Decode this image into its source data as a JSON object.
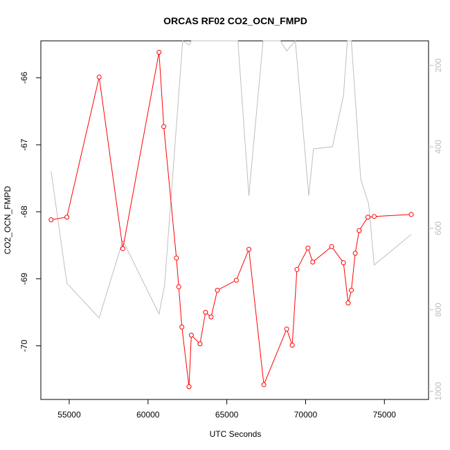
{
  "chart_data": {
    "type": "line",
    "title": "ORCAS RF02 CO2_OCN_FMPD",
    "xlabel": "UTC Seconds",
    "ylabel": "CO2_OCN_FMPD",
    "xlim": [
      53200,
      77800
    ],
    "ylim": [
      -70.8,
      -65.45
    ],
    "x_ticks": [
      55000,
      60000,
      65000,
      70000,
      75000
    ],
    "y_ticks": [
      -70,
      -69,
      -68,
      -67,
      -66
    ],
    "right_axis": {
      "ylim": [
        1020,
        140
      ],
      "ticks": [
        200,
        400,
        600,
        800,
        1000
      ],
      "color": "#bebebe"
    },
    "series": [
      {
        "color": "#ff0000",
        "marker": "open-circle",
        "axis": "left",
        "x": [
          53850,
          54850,
          56900,
          58400,
          60700,
          61000,
          61800,
          61950,
          62150,
          62600,
          62750,
          63300,
          63650,
          64000,
          64400,
          65600,
          66400,
          67350,
          68800,
          69150,
          69450,
          70150,
          70450,
          71650,
          72400,
          72700,
          72900,
          73150,
          73400,
          73950,
          74350,
          76700
        ],
        "y": [
          -68.12,
          -68.08,
          -65.99,
          -68.55,
          -65.62,
          -66.73,
          -68.69,
          -69.12,
          -69.72,
          -70.61,
          -69.84,
          -69.97,
          -69.5,
          -69.57,
          -69.17,
          -69.02,
          -68.56,
          -70.58,
          -69.75,
          -69.99,
          -68.86,
          -68.54,
          -68.75,
          -68.52,
          -68.76,
          -69.36,
          -69.17,
          -68.62,
          -68.28,
          -68.08,
          -68.07,
          -68.04
        ]
      },
      {
        "color": "#bebebe",
        "marker": "none",
        "axis": "right",
        "x": [
          53850,
          54850,
          56900,
          58400,
          60700,
          61050,
          62200,
          62600,
          62750,
          63350,
          64400,
          65700,
          66400,
          67300,
          68400,
          68800,
          69350,
          70200,
          70500,
          71700,
          72400,
          72650,
          72900,
          73500,
          74000,
          74350,
          76700
        ],
        "y": [
          460,
          735,
          820,
          630,
          810,
          740,
          140,
          150,
          140,
          140,
          140,
          140,
          520,
          140,
          140,
          165,
          140,
          520,
          405,
          400,
          275,
          140,
          140,
          480,
          540,
          690,
          615
        ]
      }
    ]
  }
}
